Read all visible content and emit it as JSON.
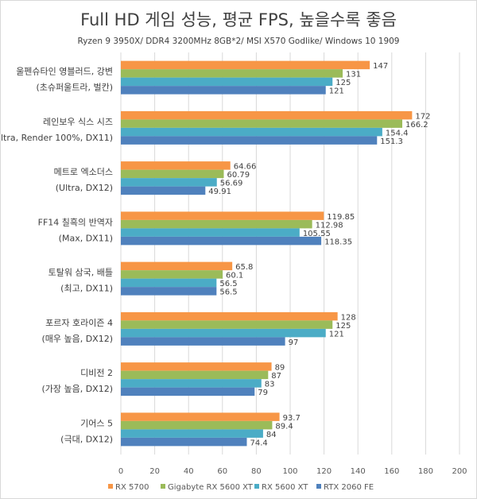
{
  "chart_data": {
    "type": "bar",
    "orientation": "horizontal",
    "title": "Full HD 게임 성능, 평균 FPS,  높을수록 좋음",
    "subtitle": "Ryzen 9 3950X/ DDR4 3200MHz 8GB*2/ MSI X570 Godlike/ Windows 10 1909",
    "categories": [
      [
        "울펜슈타인 영블러드, 강변",
        "(초슈퍼울트라, 벌칸)"
      ],
      [
        "레인보우 식스 시즈",
        "(Ultra, Render 100%, DX11)"
      ],
      [
        "메트로 엑소더스",
        "(Ultra, DX12)"
      ],
      [
        "FF14 칠흑의 반역자",
        "(Max, DX11)"
      ],
      [
        "토탈워 삼국, 배틀",
        "(최고, DX11)"
      ],
      [
        "포르자 호라이즌 4",
        "(매우 높음, DX12)"
      ],
      [
        "디비전 2",
        "(가장 높음, DX12)"
      ],
      [
        "기어스 5",
        "(극대, DX12)"
      ]
    ],
    "series": [
      {
        "name": "RX 5700",
        "color": "#f79646",
        "values": [
          147,
          172,
          64.66,
          119.85,
          65.8,
          128,
          89,
          93.7
        ],
        "labels": [
          "147",
          "172",
          "64.66",
          "119.85",
          "65.8",
          "128",
          "89",
          "93.7"
        ]
      },
      {
        "name": "Gigabyte RX 5600 XT",
        "color": "#9bbb59",
        "values": [
          131,
          166.2,
          60.79,
          112.98,
          60.1,
          125,
          87,
          89.4
        ],
        "labels": [
          "131",
          "166.2",
          "60.79",
          "112.98",
          "60.1",
          "125",
          "87",
          "89.4"
        ]
      },
      {
        "name": "RX 5600 XT",
        "color": "#4bacc6",
        "values": [
          125,
          154.4,
          56.69,
          105.55,
          56.5,
          121,
          83,
          84
        ],
        "labels": [
          "125",
          "154.4",
          "56.69",
          "105.55",
          "56.5",
          "121",
          "83",
          "84"
        ]
      },
      {
        "name": "RTX 2060 FE",
        "color": "#4f81bd",
        "values": [
          121,
          151.3,
          49.91,
          118.35,
          56.5,
          97,
          79,
          74.4
        ],
        "labels": [
          "121",
          "151.3",
          "49.91",
          "118.35",
          "56.5",
          "97",
          "79",
          "74.4"
        ]
      }
    ],
    "xlim": [
      0,
      200
    ],
    "xticks": [
      "0",
      "20",
      "40",
      "60",
      "80",
      "100",
      "120",
      "140",
      "160",
      "180",
      "200"
    ],
    "grid": "vertical",
    "legend": "bottom"
  }
}
